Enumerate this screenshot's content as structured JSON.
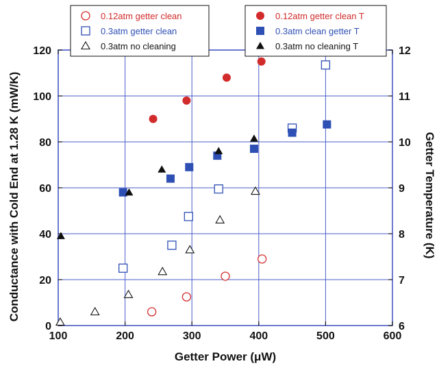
{
  "chart_data": {
    "type": "scatter",
    "xlabel": "Getter Power (μW)",
    "ylabel_left": "Conductance with Cold End at 1.28 K (mW/K)",
    "ylabel_right": "Getter Temperature (K)",
    "xlim": [
      100,
      600
    ],
    "ylim_left": [
      0,
      120
    ],
    "ylim_right": [
      6,
      12
    ],
    "x_ticks": [
      "100",
      "200",
      "300",
      "400",
      "500",
      "600"
    ],
    "y_left_ticks": [
      "0",
      "20",
      "40",
      "60",
      "80",
      "100",
      "120"
    ],
    "y_right_ticks": [
      "6",
      "7",
      "8",
      "9",
      "10",
      "11",
      "12"
    ],
    "grid": true,
    "legend_left_position": "top-left",
    "legend_right_position": "top-right",
    "series": [
      {
        "name": "0.12atm getter clean",
        "axis": "left",
        "marker": "circle-open",
        "color": "#d22b2b",
        "points": [
          [
            240,
            6
          ],
          [
            292,
            12.5
          ],
          [
            350,
            21.5
          ],
          [
            405,
            29
          ]
        ]
      },
      {
        "name": "0.3atm getter clean",
        "axis": "left",
        "marker": "square-open",
        "color": "#2e4fb4",
        "points": [
          [
            197,
            25
          ],
          [
            270,
            35
          ],
          [
            295,
            47.5
          ],
          [
            340,
            59.5
          ],
          [
            450,
            86
          ],
          [
            500,
            113.5
          ]
        ]
      },
      {
        "name": "0.3atm no cleaning",
        "axis": "left",
        "marker": "triangle-open",
        "color": "#111111",
        "points": [
          [
            103,
            1.5
          ],
          [
            155,
            6
          ],
          [
            205,
            13.5
          ],
          [
            256,
            23.5
          ],
          [
            297,
            33
          ],
          [
            342,
            46
          ],
          [
            395,
            58.5
          ]
        ]
      },
      {
        "name": "0.12atm getter clean T",
        "axis": "right",
        "marker": "circle-filled",
        "color": "#d22b2b",
        "points": [
          [
            242,
            10.5
          ],
          [
            292,
            10.9
          ],
          [
            352,
            11.4
          ],
          [
            404,
            11.75
          ]
        ]
      },
      {
        "name": "0.3atm clean getter T",
        "axis": "right",
        "marker": "square-filled",
        "color": "#2e4fb4",
        "points": [
          [
            197,
            8.9
          ],
          [
            268,
            9.2
          ],
          [
            296,
            9.45
          ],
          [
            338,
            9.7
          ],
          [
            393,
            9.85
          ],
          [
            450,
            10.2
          ],
          [
            502,
            10.38
          ]
        ]
      },
      {
        "name": "0.3atm no cleaning T",
        "axis": "right",
        "marker": "triangle-filled",
        "color": "#111111",
        "points": [
          [
            104,
            7.95
          ],
          [
            206,
            8.9
          ],
          [
            255,
            9.4
          ],
          [
            340,
            9.8
          ],
          [
            393,
            10.07
          ]
        ]
      }
    ]
  }
}
